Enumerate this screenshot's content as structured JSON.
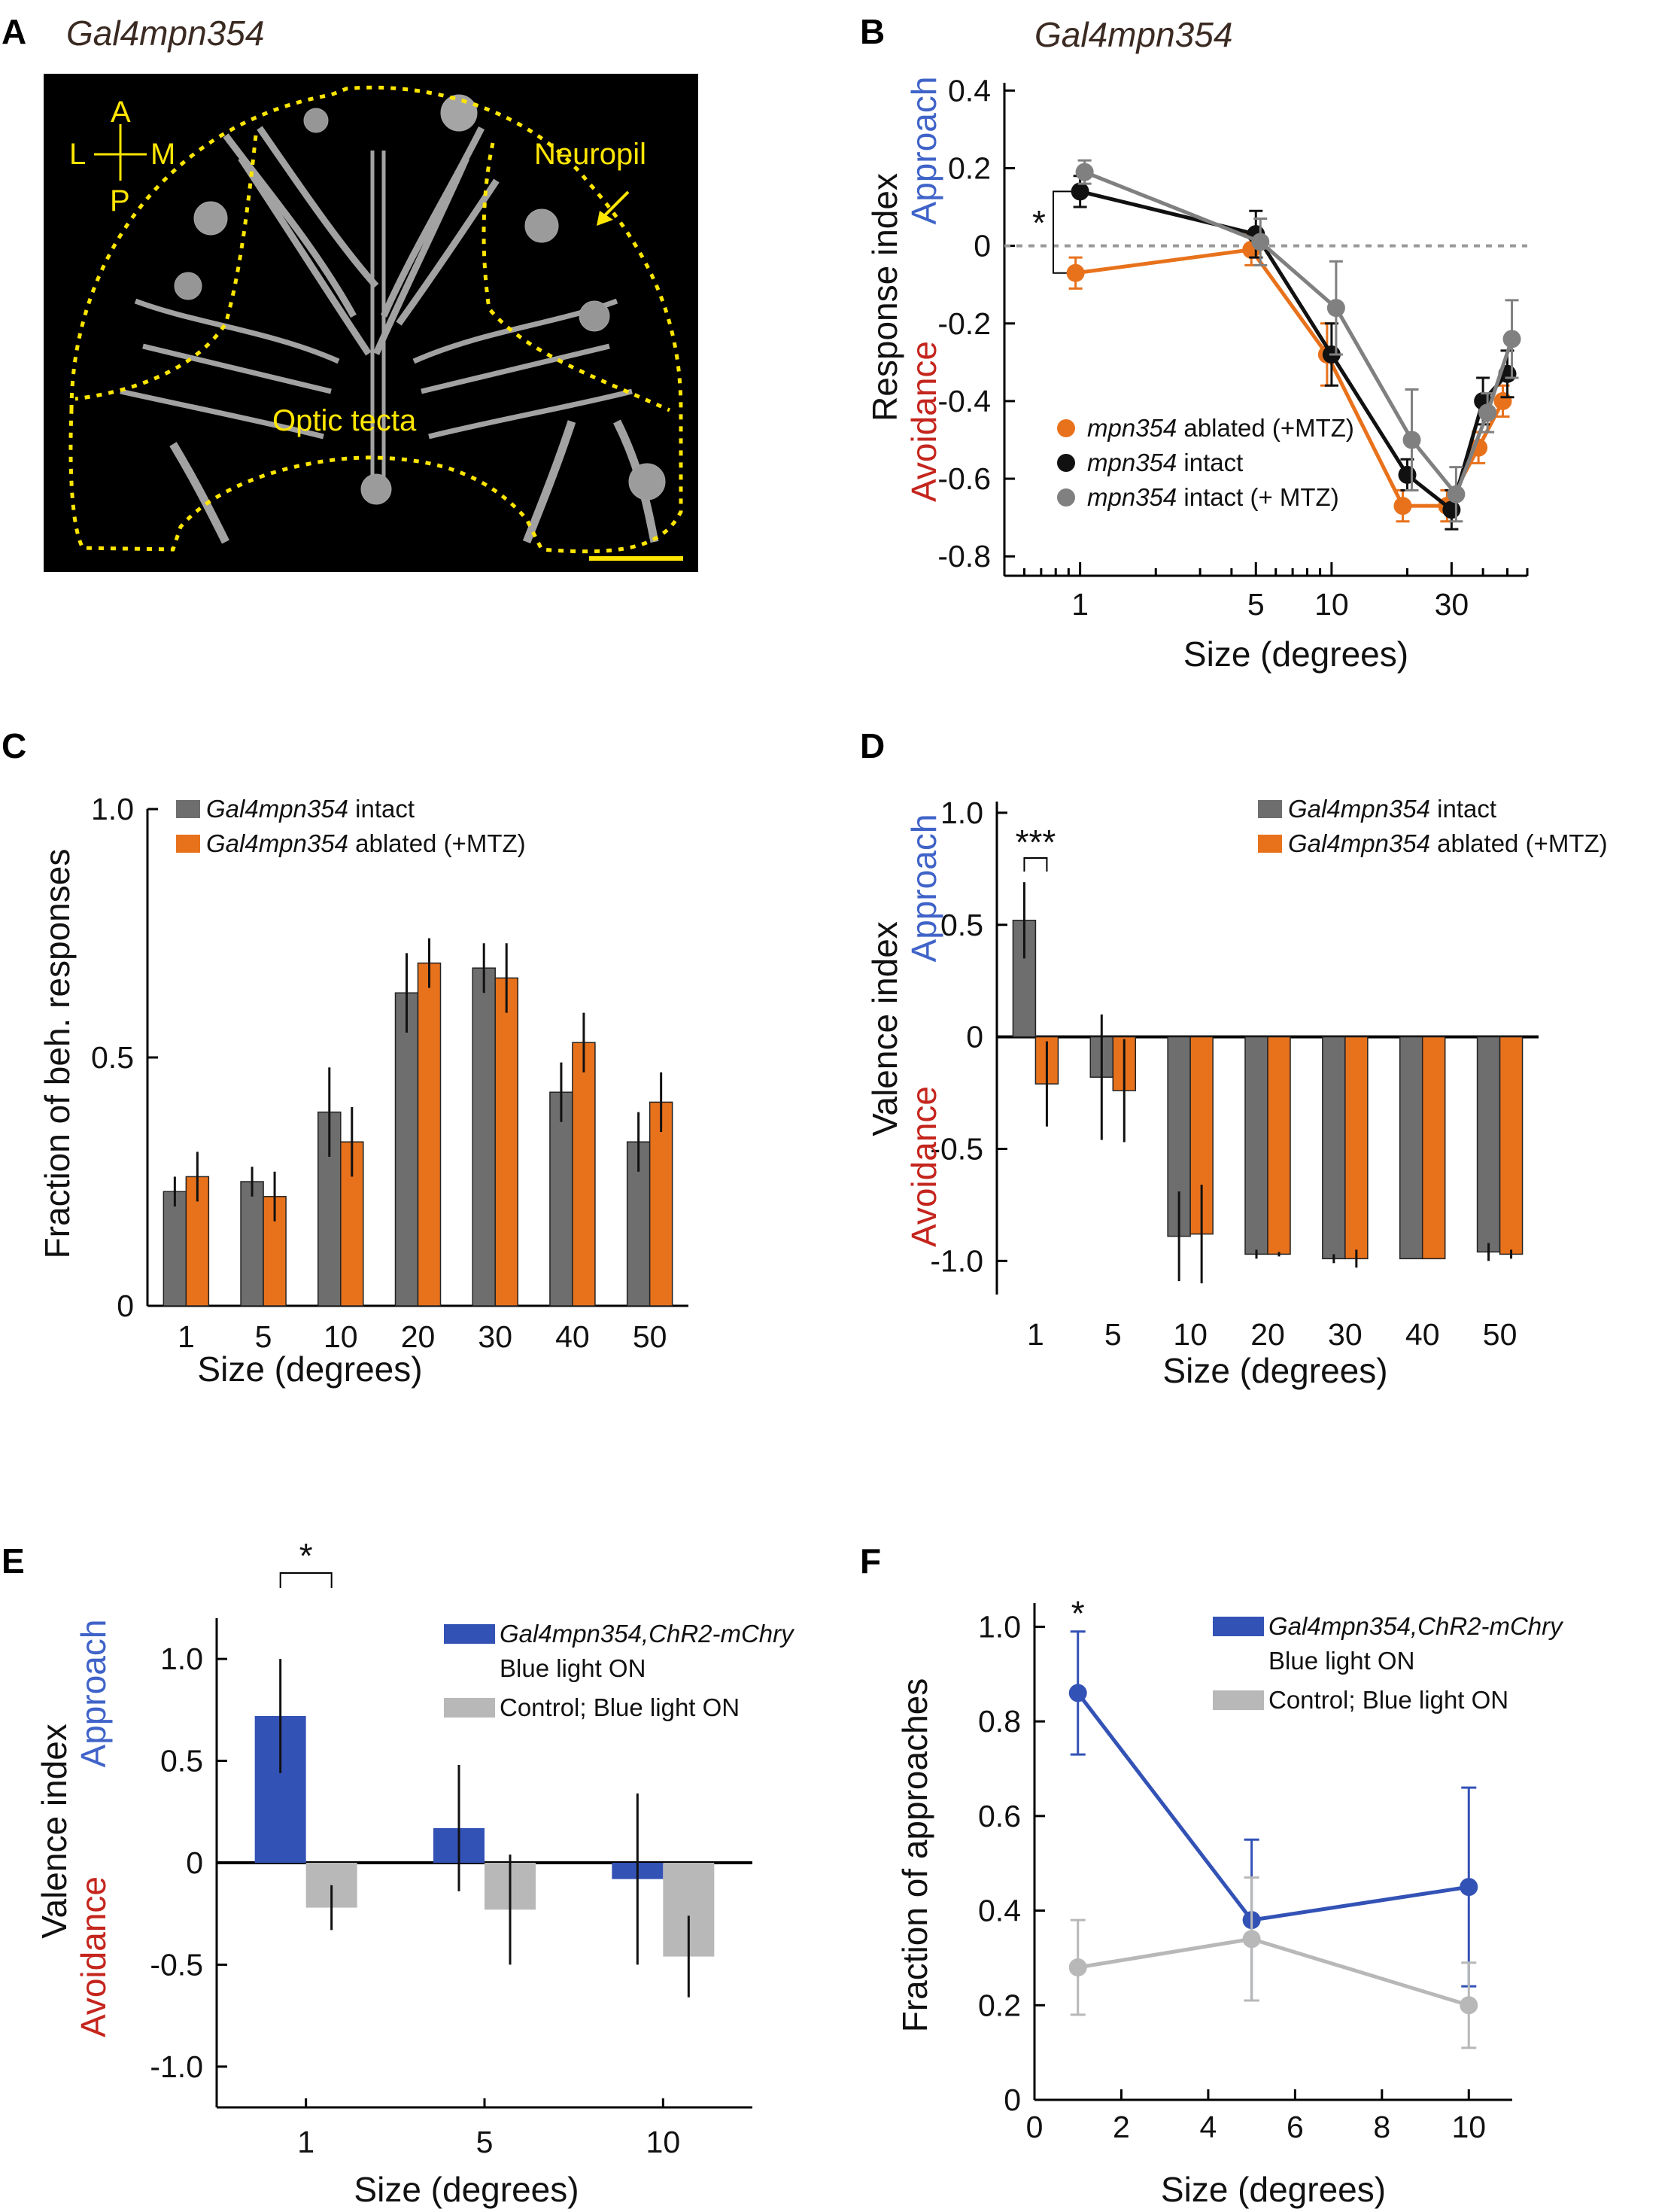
{
  "colors": {
    "orange": "#e8721c",
    "black": "#111111",
    "gray": "#808080",
    "dark_gray": "#6e6e6e",
    "blue": "#3352b6",
    "light_gray": "#b8b8b8",
    "approach": "#3f63c8",
    "avoidance": "#c4251d",
    "yellow": "#ffe600"
  },
  "panel_a": {
    "letter": "A",
    "title": "Gal4mpn354",
    "compass": {
      "a": "A",
      "l": "L",
      "m": "M",
      "p": "P"
    },
    "labels": {
      "neuropil": "Neuropil",
      "optic_tecta": "Optic tecta"
    }
  },
  "panel_b": {
    "letter": "B",
    "title": "Gal4mpn354"
  },
  "panel_c": {
    "letter": "C"
  },
  "panel_d": {
    "letter": "D"
  },
  "panel_e": {
    "letter": "E"
  },
  "panel_f": {
    "letter": "F"
  },
  "chart_data": [
    {
      "id": "B",
      "type": "line",
      "xscale": "log",
      "xlim": [
        0.5,
        60
      ],
      "ylim": [
        -0.85,
        0.42
      ],
      "xticks": [
        1,
        5,
        10,
        30
      ],
      "yticks": [
        0.4,
        0.2,
        0,
        -0.2,
        -0.4,
        -0.6,
        -0.8
      ],
      "ytick_labels": [
        "0.4",
        "0.2",
        "0",
        "-0.2",
        "-0.4",
        "-0.6",
        "-0.8"
      ],
      "xlabel": "Size (degrees)",
      "ylabel": {
        "main": "Response index",
        "approach": "Approach",
        "avoidance": "Avoidance"
      },
      "significance": "*",
      "x": [
        1,
        5,
        10,
        20,
        30,
        40,
        50
      ],
      "series": [
        {
          "name": "mpn354 ablated (+MTZ)",
          "name_italic": "mpn354",
          "name_rest": " ablated (+MTZ)",
          "color": "#e8721c",
          "y": [
            -0.07,
            -0.01,
            -0.28,
            -0.67,
            -0.67,
            -0.52,
            -0.4
          ],
          "err": [
            0.04,
            0.04,
            0.08,
            0.04,
            0.04,
            0.04,
            0.04
          ]
        },
        {
          "name": "mpn354 intact",
          "name_italic": "mpn354",
          "name_rest": " intact",
          "color": "#111111",
          "y": [
            0.14,
            0.03,
            -0.28,
            -0.59,
            -0.68,
            -0.4,
            -0.33
          ],
          "err": [
            0.04,
            0.06,
            0.08,
            0.04,
            0.05,
            0.06,
            0.06
          ]
        },
        {
          "name": "mpn354 intact (+ MTZ)",
          "name_italic": "mpn354",
          "name_rest": " intact (+ MTZ)",
          "color": "#808080",
          "y": [
            0.19,
            0.01,
            -0.16,
            -0.5,
            -0.64,
            -0.43,
            -0.24
          ],
          "err": [
            0.03,
            0.06,
            0.12,
            0.13,
            0.07,
            0.05,
            0.1
          ]
        }
      ]
    },
    {
      "id": "C",
      "type": "bar",
      "categories": [
        "1",
        "5",
        "10",
        "20",
        "30",
        "40",
        "50"
      ],
      "ylim": [
        0,
        1.0
      ],
      "yticks": [
        0,
        0.5,
        1.0
      ],
      "ytick_labels": [
        "0",
        "0.5",
        "1.0"
      ],
      "xlabel": "Size (degrees)",
      "ylabel": "Fraction of  beh. responses",
      "series": [
        {
          "name": "Gal4mpn354 intact",
          "name_italic": "Gal4mpn354",
          "name_rest": " intact",
          "color": "#6e6e6e",
          "values": [
            0.23,
            0.25,
            0.39,
            0.63,
            0.68,
            0.43,
            0.33
          ],
          "err": [
            0.03,
            0.03,
            0.09,
            0.08,
            0.05,
            0.06,
            0.06
          ]
        },
        {
          "name": "Gal4mpn354 ablated (+MTZ)",
          "name_italic": "Gal4mpn354",
          "name_rest": " ablated (+MTZ)",
          "color": "#e8721c",
          "values": [
            0.26,
            0.22,
            0.33,
            0.69,
            0.66,
            0.53,
            0.41
          ],
          "err": [
            0.05,
            0.05,
            0.07,
            0.05,
            0.07,
            0.06,
            0.06
          ]
        }
      ]
    },
    {
      "id": "D",
      "type": "bar",
      "categories": [
        "1",
        "5",
        "10",
        "20",
        "30",
        "40",
        "50"
      ],
      "ylim": [
        -1.15,
        1.05
      ],
      "yticks": [
        1.0,
        0.5,
        0,
        -0.5,
        -1.0
      ],
      "ytick_labels": [
        "1.0",
        "0.5",
        "0",
        "-0.5",
        "-1.0"
      ],
      "xlabel": "Size (degrees)",
      "ylabel": {
        "main": "Valence index",
        "approach": "Approach",
        "avoidance": "Avoidance"
      },
      "significance": "***",
      "series": [
        {
          "name": "Gal4mpn354 intact",
          "name_italic": "Gal4mpn354",
          "name_rest": " intact",
          "color": "#6e6e6e",
          "values": [
            0.52,
            -0.18,
            -0.89,
            -0.97,
            -0.99,
            -0.99,
            -0.96
          ],
          "err": [
            0.17,
            0.28,
            0.2,
            0.02,
            0.02,
            0.0,
            0.04
          ]
        },
        {
          "name": "Gal4mpn354 ablated (+MTZ)",
          "name_italic": "Gal4mpn354",
          "name_rest": " ablated (+MTZ)",
          "color": "#e8721c",
          "values": [
            -0.21,
            -0.24,
            -0.88,
            -0.97,
            -0.99,
            -0.99,
            -0.97
          ],
          "err": [
            0.19,
            0.23,
            0.22,
            0.01,
            0.04,
            0.0,
            0.02
          ]
        }
      ]
    },
    {
      "id": "E",
      "type": "bar",
      "categories": [
        "1",
        "5",
        "10"
      ],
      "ylim": [
        -1.2,
        1.2
      ],
      "yticks": [
        1.0,
        0.5,
        0,
        -0.5,
        -1.0
      ],
      "ytick_labels": [
        "1.0",
        "0.5",
        "0",
        "-0.5",
        "-1.0"
      ],
      "xlabel": "Size (degrees)",
      "ylabel": {
        "main": "Valence index",
        "approach": "Approach",
        "avoidance": "Avoidance"
      },
      "significance": "*",
      "series": [
        {
          "name": "Gal4mpn354,ChR2-mChry Blue light ON",
          "name_italic": "Gal4mpn354,ChR2-mChry",
          "name_rest": "Blue light ON",
          "color": "#3352b6",
          "values": [
            0.72,
            0.17,
            -0.08
          ],
          "err": [
            0.28,
            0.31,
            0.42
          ]
        },
        {
          "name": "Control; Blue light ON",
          "name_italic": "",
          "name_rest": "Control; Blue light ON",
          "color": "#b8b8b8",
          "values": [
            -0.22,
            -0.23,
            -0.46
          ],
          "err": [
            0.11,
            0.27,
            0.2
          ]
        }
      ]
    },
    {
      "id": "F",
      "type": "line",
      "xlim": [
        0,
        11
      ],
      "ylim": [
        0,
        1.05
      ],
      "xticks": [
        0,
        2,
        4,
        6,
        8,
        10
      ],
      "yticks": [
        0,
        0.2,
        0.4,
        0.6,
        0.8,
        1.0
      ],
      "ytick_labels": [
        "0",
        "0.2",
        "0.4",
        "0.6",
        "0.8",
        "1.0"
      ],
      "xlabel": "Size (degrees)",
      "ylabel": "Fraction of  approaches",
      "significance": "*",
      "x": [
        1,
        5,
        10
      ],
      "series": [
        {
          "name": "Gal4mpn354,ChR2-mChry Blue light ON",
          "name_italic": "Gal4mpn354,ChR2-mChry",
          "name_rest": "Blue light ON",
          "color": "#3352b6",
          "y": [
            0.86,
            0.38,
            0.45
          ],
          "err": [
            0.13,
            0.17,
            0.21
          ]
        },
        {
          "name": "Control; Blue light ON",
          "name_italic": "",
          "name_rest": "Control; Blue light ON",
          "color": "#b8b8b8",
          "y": [
            0.28,
            0.34,
            0.2
          ],
          "err": [
            0.1,
            0.13,
            0.09
          ]
        }
      ]
    }
  ]
}
